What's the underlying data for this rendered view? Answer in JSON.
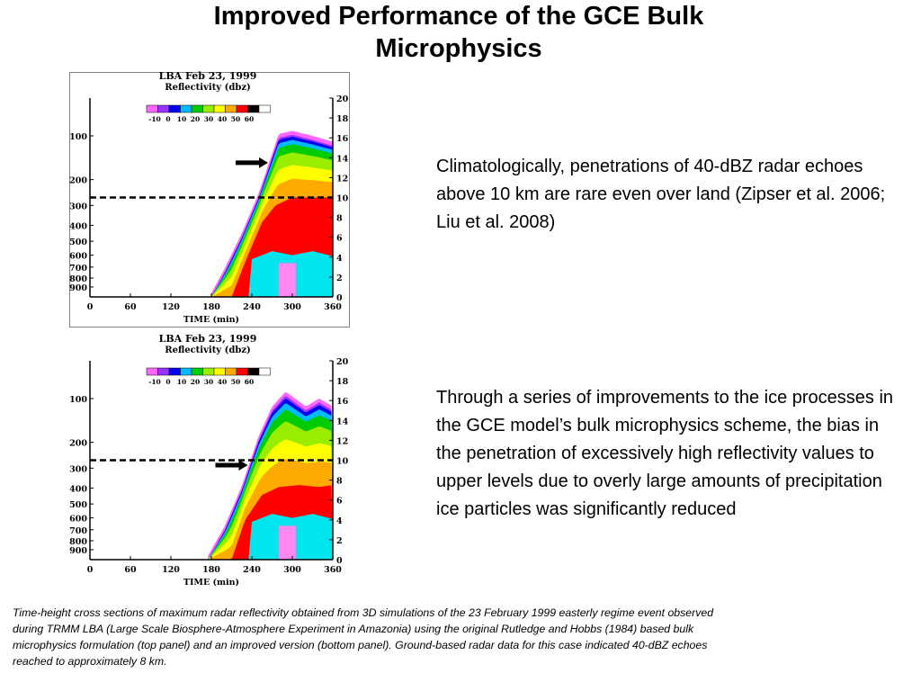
{
  "slide": {
    "title_line1": "Improved Performance of the GCE Bulk",
    "title_line2": "Microphysics",
    "text1": "Climatologically, penetrations of 40-dBZ  radar echoes above 10 km are rare even over land (Zipser et al. 2006; Liu et al. 2008)",
    "text2": "Through a series of improvements to the ice processes in the GCE model’s bulk microphysics scheme, the bias in the penetration of excessively high reflectivity values to upper levels due to overly large amounts of precipitation ice particles was significantly reduced",
    "caption": "Time-height cross sections of maximum radar reflectivity obtained from 3D simulations of the 23 February 1999 easterly regime event observed during TRMM LBA (Large Scale Biosphere-Atmosphere Experiment in Amazonia) using the original Rutledge and Hobbs (1984) based bulk microphysics formulation (top panel) and an improved version (bottom panel). Ground-based radar data for this case indicated 40-dBZ echoes reached to approximately 8 km."
  },
  "chart_data": [
    {
      "type": "heatmap",
      "panel": "top",
      "title": "LBA   Feb 23, 1999",
      "subtitle": "Reflectivity (dbz)",
      "xlabel": "TIME (min)",
      "x_ticks": [
        "0",
        "60",
        "120",
        "180",
        "240",
        "300",
        "360"
      ],
      "xlim": [
        0,
        360
      ],
      "y_left_ticks": [
        "100",
        "200",
        "300",
        "400",
        "500",
        "600",
        "700",
        "800",
        "900"
      ],
      "y_left_values": [
        100,
        200,
        300,
        400,
        500,
        600,
        700,
        800,
        900
      ],
      "y_right_ticks": [
        "20",
        "18",
        "16",
        "14",
        "12",
        "10",
        "8",
        "6",
        "4",
        "2",
        "0"
      ],
      "y_right_values": [
        20,
        18,
        16,
        14,
        12,
        10,
        8,
        6,
        4,
        2,
        0
      ],
      "ylim_km": [
        0,
        20
      ],
      "colorbar_labels": [
        "-10",
        "0",
        "10",
        "20",
        "30",
        "40",
        "50",
        "60"
      ],
      "colorbar_colors": [
        "#ff66ff",
        "#9933ff",
        "#0000ee",
        "#00bbff",
        "#00cc00",
        "#99ee00",
        "#ffff00",
        "#ffaa00",
        "#ff0000",
        "#000000",
        "#ffffff"
      ],
      "dashed_line_km": 10,
      "arrow_km": 13.5,
      "echo_top_km": [
        [
          180,
          0
        ],
        [
          200,
          2.5
        ],
        [
          225,
          6
        ],
        [
          250,
          10
        ],
        [
          265,
          13
        ],
        [
          280,
          16
        ],
        [
          300,
          16.3
        ],
        [
          330,
          15.8
        ],
        [
          360,
          15.2
        ]
      ],
      "dbz40_top_km": [
        [
          210,
          0
        ],
        [
          230,
          3.5
        ],
        [
          255,
          7.5
        ],
        [
          275,
          9.2
        ],
        [
          300,
          10
        ],
        [
          330,
          10
        ],
        [
          360,
          10
        ]
      ]
    },
    {
      "type": "heatmap",
      "panel": "bottom",
      "title": "LBA   Feb 23, 1999",
      "subtitle": "Reflectivity (dbz)",
      "xlabel": "TIME (min)",
      "x_ticks": [
        "0",
        "60",
        "120",
        "180",
        "240",
        "300",
        "360"
      ],
      "xlim": [
        0,
        360
      ],
      "y_left_ticks": [
        "100",
        "200",
        "300",
        "400",
        "500",
        "600",
        "700",
        "800",
        "900"
      ],
      "y_left_values": [
        100,
        200,
        300,
        400,
        500,
        600,
        700,
        800,
        900
      ],
      "y_right_ticks": [
        "20",
        "18",
        "16",
        "14",
        "12",
        "10",
        "8",
        "6",
        "4",
        "2",
        "0"
      ],
      "y_right_values": [
        20,
        18,
        16,
        14,
        12,
        10,
        8,
        6,
        4,
        2,
        0
      ],
      "ylim_km": [
        0,
        20
      ],
      "colorbar_labels": [
        "-10",
        "0",
        "10",
        "20",
        "30",
        "40",
        "50",
        "60"
      ],
      "colorbar_colors": [
        "#ff66ff",
        "#9933ff",
        "#0000ee",
        "#00bbff",
        "#00cc00",
        "#99ee00",
        "#ffff00",
        "#ffaa00",
        "#ff0000",
        "#000000",
        "#ffffff"
      ],
      "dashed_line_km": 10,
      "arrow_km": 9.5,
      "echo_top_km": [
        [
          175,
          0
        ],
        [
          200,
          3
        ],
        [
          225,
          7
        ],
        [
          250,
          12
        ],
        [
          270,
          15
        ],
        [
          290,
          16.5
        ],
        [
          320,
          15
        ],
        [
          340,
          15.8
        ],
        [
          360,
          15
        ]
      ],
      "dbz40_top_km": [
        [
          210,
          0
        ],
        [
          230,
          4
        ],
        [
          255,
          6.5
        ],
        [
          280,
          7.3
        ],
        [
          310,
          7.5
        ],
        [
          340,
          7.3
        ],
        [
          360,
          7.5
        ]
      ]
    }
  ]
}
